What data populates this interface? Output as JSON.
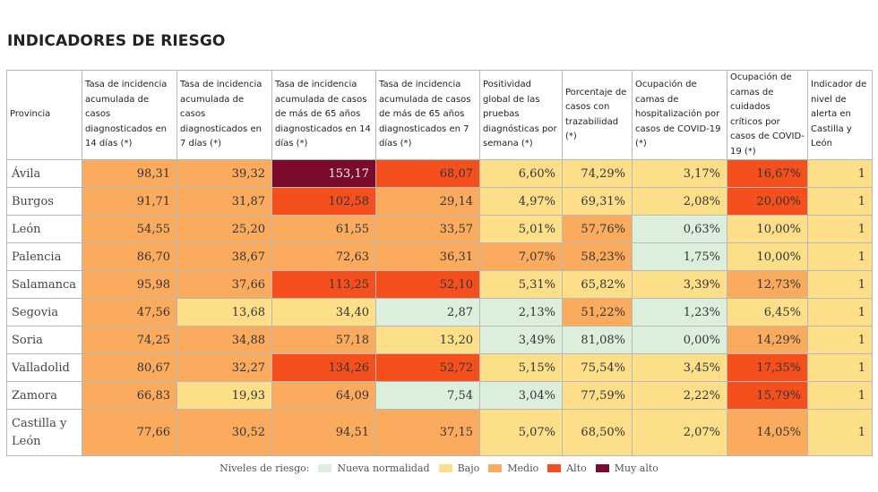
{
  "title": "INDICADORES DE RIESGO",
  "colors": {
    "nn": "#dcefdc",
    "bajo": "#fddf8a",
    "medio": "#fbab5e",
    "alto": "#f54f1d",
    "muy_alto": "#7b0a2c"
  },
  "headers": [
    "Provincia",
    "Tasa de incidencia acumulada de casos diagnosticados en 14 días (*)",
    "Tasa de incidencia acumulada de casos diagnosticados en 7 días (*)",
    "Tasa de incidencia acumulada de casos de más de 65 años diagnosticados en 14 días (*)",
    "Tasa de incidencia acumulada de casos de más de 65 años diagnosticados en 7 días (*)",
    "Positividad global de las pruebas diagnósticas por semana (*)",
    "Porcentaje de casos con trazabilidad (*)",
    "Ocupación de camas de hospitalización por casos de COVID-19 (*)",
    "Ocupación de camas de cuidados críticos por casos de COVID-19 (*)",
    "Indicador de nivel de alerta en Castilla y León"
  ],
  "rows": [
    {
      "provincia": "Ávila",
      "values": [
        "98,31",
        "39,32",
        "153,17",
        "68,07",
        "6,60%",
        "74,29%",
        "3,17%",
        "16,67%",
        "1"
      ],
      "levels": [
        "medio",
        "medio",
        "muy_alto",
        "alto",
        "bajo",
        "bajo",
        "bajo",
        "alto",
        "bajo"
      ]
    },
    {
      "provincia": "Burgos",
      "values": [
        "91,71",
        "31,87",
        "102,58",
        "29,14",
        "4,97%",
        "69,31%",
        "2,08%",
        "20,00%",
        "1"
      ],
      "levels": [
        "medio",
        "medio",
        "alto",
        "medio",
        "bajo",
        "bajo",
        "bajo",
        "alto",
        "bajo"
      ]
    },
    {
      "provincia": "León",
      "values": [
        "54,55",
        "25,20",
        "61,55",
        "33,57",
        "5,01%",
        "57,76%",
        "0,63%",
        "10,00%",
        "1"
      ],
      "levels": [
        "medio",
        "medio",
        "medio",
        "medio",
        "bajo",
        "medio",
        "nn",
        "bajo",
        "bajo"
      ]
    },
    {
      "provincia": "Palencia",
      "values": [
        "86,70",
        "38,67",
        "72,63",
        "36,31",
        "7,07%",
        "58,23%",
        "1,75%",
        "10,00%",
        "1"
      ],
      "levels": [
        "medio",
        "medio",
        "medio",
        "medio",
        "medio",
        "medio",
        "nn",
        "bajo",
        "bajo"
      ]
    },
    {
      "provincia": "Salamanca",
      "values": [
        "95,98",
        "37,66",
        "113,25",
        "52,10",
        "5,31%",
        "65,82%",
        "3,39%",
        "12,73%",
        "1"
      ],
      "levels": [
        "medio",
        "medio",
        "alto",
        "alto",
        "bajo",
        "bajo",
        "bajo",
        "medio",
        "bajo"
      ]
    },
    {
      "provincia": "Segovia",
      "values": [
        "47,56",
        "13,68",
        "34,40",
        "2,87",
        "2,13%",
        "51,22%",
        "1,23%",
        "6,45%",
        "1"
      ],
      "levels": [
        "medio",
        "bajo",
        "bajo",
        "nn",
        "nn",
        "medio",
        "nn",
        "bajo",
        "bajo"
      ]
    },
    {
      "provincia": "Soria",
      "values": [
        "74,25",
        "34,88",
        "57,18",
        "13,20",
        "3,49%",
        "81,08%",
        "0,00%",
        "14,29%",
        "1"
      ],
      "levels": [
        "medio",
        "medio",
        "medio",
        "bajo",
        "nn",
        "nn",
        "nn",
        "medio",
        "bajo"
      ]
    },
    {
      "provincia": "Valladolid",
      "values": [
        "80,67",
        "32,27",
        "134,26",
        "52,72",
        "5,15%",
        "75,54%",
        "3,45%",
        "17,35%",
        "1"
      ],
      "levels": [
        "medio",
        "medio",
        "alto",
        "alto",
        "bajo",
        "bajo",
        "bajo",
        "alto",
        "bajo"
      ]
    },
    {
      "provincia": "Zamora",
      "values": [
        "66,83",
        "19,93",
        "64,09",
        "7,54",
        "3,04%",
        "77,59%",
        "2,22%",
        "15,79%",
        "1"
      ],
      "levels": [
        "medio",
        "bajo",
        "medio",
        "nn",
        "nn",
        "bajo",
        "bajo",
        "alto",
        "bajo"
      ]
    },
    {
      "provincia": "Castilla y León",
      "values": [
        "77,66",
        "30,52",
        "94,51",
        "37,15",
        "5,07%",
        "68,50%",
        "2,07%",
        "14,05%",
        "1"
      ],
      "levels": [
        "medio",
        "medio",
        "medio",
        "medio",
        "bajo",
        "bajo",
        "bajo",
        "medio",
        "bajo"
      ]
    }
  ],
  "legend": {
    "title": "Niveles de riesgo:",
    "items": [
      {
        "key": "nn",
        "label": "Nueva normalidad"
      },
      {
        "key": "bajo",
        "label": "Bajo"
      },
      {
        "key": "medio",
        "label": "Medio"
      },
      {
        "key": "alto",
        "label": "Alto"
      },
      {
        "key": "muy_alto",
        "label": "Muy alto"
      }
    ]
  },
  "chart_data": {
    "type": "table",
    "title": "INDICADORES DE RIESGO",
    "columns": [
      "Provincia",
      "Tasa de incidencia acumulada de casos diagnosticados en 14 días (*)",
      "Tasa de incidencia acumulada de casos diagnosticados en 7 días (*)",
      "Tasa de incidencia acumulada de casos de más de 65 años diagnosticados en 14 días (*)",
      "Tasa de incidencia acumulada de casos de más de 65 años diagnosticados en 7 días (*)",
      "Positividad global de las pruebas diagnósticas por semana (*)",
      "Porcentaje de casos con trazabilidad (*)",
      "Ocupación de camas de hospitalización por casos de COVID-19 (*)",
      "Ocupación de camas de cuidados críticos por casos de COVID-19 (*)",
      "Indicador de nivel de alerta en Castilla y León"
    ],
    "rows": [
      [
        "Ávila",
        98.31,
        39.32,
        153.17,
        68.07,
        6.6,
        74.29,
        3.17,
        16.67,
        1
      ],
      [
        "Burgos",
        91.71,
        31.87,
        102.58,
        29.14,
        4.97,
        69.31,
        2.08,
        20.0,
        1
      ],
      [
        "León",
        54.55,
        25.2,
        61.55,
        33.57,
        5.01,
        57.76,
        0.63,
        10.0,
        1
      ],
      [
        "Palencia",
        86.7,
        38.67,
        72.63,
        36.31,
        7.07,
        58.23,
        1.75,
        10.0,
        1
      ],
      [
        "Salamanca",
        95.98,
        37.66,
        113.25,
        52.1,
        5.31,
        65.82,
        3.39,
        12.73,
        1
      ],
      [
        "Segovia",
        47.56,
        13.68,
        34.4,
        2.87,
        2.13,
        51.22,
        1.23,
        6.45,
        1
      ],
      [
        "Soria",
        74.25,
        34.88,
        57.18,
        13.2,
        3.49,
        81.08,
        0.0,
        14.29,
        1
      ],
      [
        "Valladolid",
        80.67,
        32.27,
        134.26,
        52.72,
        5.15,
        75.54,
        3.45,
        17.35,
        1
      ],
      [
        "Zamora",
        66.83,
        19.93,
        64.09,
        7.54,
        3.04,
        77.59,
        2.22,
        15.79,
        1
      ],
      [
        "Castilla y León",
        77.66,
        30.52,
        94.51,
        37.15,
        5.07,
        68.5,
        2.07,
        14.05,
        1
      ]
    ]
  }
}
